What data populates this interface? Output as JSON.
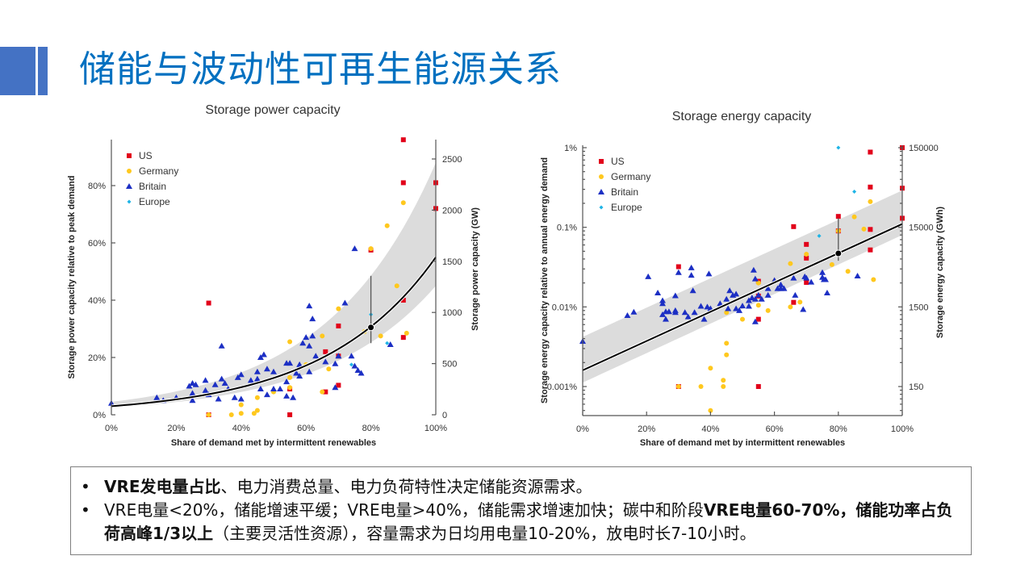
{
  "header": {
    "title": "储能与波动性可再生能源关系",
    "accent": "#4472C4",
    "title_color": "#0070C0"
  },
  "notes": {
    "bullet": "•",
    "items": [
      {
        "bold": "VRE发电量占比",
        "normal": "、电力消费总量、电力负荷特性决定储能资源需求。"
      },
      {
        "normal1": "VRE电量<20%，储能增速平缓；VRE电量>40%，储能需求增速加快；碳中和阶段",
        "bold": "VRE电量60-70%，储能功率占负荷高峰1/3以上",
        "normal2": "（主要灵活性资源），容量需求为日均用电量10-20%，放电时长7-10小时。"
      }
    ]
  },
  "colors": {
    "US": "#E2001A",
    "Germany": "#FFC81E",
    "Britain": "#1C2FC4",
    "Europe": "#1EB4E6",
    "band": "#DCDCDC",
    "fit": "#000000"
  },
  "chart_data": [
    {
      "type": "scatter",
      "title": "Storage power capacity",
      "xlabel": "Share of demand met by intermittent renewables",
      "ylabel": "Storage power capacity relative to peak demand",
      "y2label": "Storage power capacity (GW)",
      "xlim": [
        0,
        100
      ],
      "ylim": [
        0,
        96
      ],
      "yscale": "linear",
      "xticks": [
        "0%",
        "20%",
        "40%",
        "60%",
        "80%",
        "100%"
      ],
      "yticks": [
        "0%",
        "20%",
        "40%",
        "60%",
        "80%"
      ],
      "y2ticks": [
        "0",
        "500",
        "1000",
        "1500",
        "2000",
        "2500"
      ],
      "y2_per_percent": 28.4,
      "legend": [
        "US",
        "Germany",
        "Britain",
        "Europe"
      ],
      "legend_position": "top-left",
      "fit": {
        "form": "exponential",
        "y_at_0": 3,
        "y_at_100": 55,
        "band_upper": [
          4.5,
          88
        ],
        "band_lower": [
          2.5,
          45
        ],
        "marker": [
          80,
          30.5
        ],
        "errorbar": [
          25,
          48.5
        ]
      },
      "series": [
        {
          "name": "US",
          "points": [
            [
              30,
              39
            ],
            [
              90,
              96
            ],
            [
              90,
              81
            ],
            [
              100,
              81
            ],
            [
              100,
              72
            ],
            [
              80,
              57.5
            ],
            [
              90,
              40
            ],
            [
              70,
              31
            ],
            [
              90,
              27
            ],
            [
              66,
              22
            ],
            [
              70,
              20.5
            ],
            [
              70,
              10.3
            ],
            [
              66,
              8
            ],
            [
              55,
              9
            ],
            [
              55,
              0
            ],
            [
              30,
              0
            ]
          ]
        },
        {
          "name": "Germany",
          "points": [
            [
              90,
              74
            ],
            [
              85,
              66
            ],
            [
              80,
              58
            ],
            [
              88,
              45
            ],
            [
              70,
              37
            ],
            [
              91,
              28.5
            ],
            [
              83,
              27.5
            ],
            [
              65,
              27.5
            ],
            [
              55,
              25.5
            ],
            [
              60,
              17.5
            ],
            [
              67,
              16
            ],
            [
              55,
              13
            ],
            [
              55,
              9.5
            ],
            [
              50,
              8
            ],
            [
              65,
              8
            ],
            [
              45,
              6
            ],
            [
              40,
              3.5
            ],
            [
              40,
              0.5
            ],
            [
              44,
              0.5
            ],
            [
              45,
              1.5
            ],
            [
              37,
              0
            ],
            [
              30,
              0
            ],
            [
              78,
              29
            ]
          ]
        },
        {
          "name": "Britain",
          "points": [
            [
              75,
              58
            ],
            [
              61,
              38
            ],
            [
              72,
              39
            ],
            [
              62,
              33.5
            ],
            [
              34,
              24
            ],
            [
              47,
              21
            ],
            [
              46,
              20
            ],
            [
              59,
              25
            ],
            [
              61,
              24
            ],
            [
              60,
              27
            ],
            [
              62,
              27.5
            ],
            [
              63,
              20.5
            ],
            [
              66,
              18.5
            ],
            [
              70,
              20.5
            ],
            [
              69,
              17.8
            ],
            [
              74,
              20.5
            ],
            [
              75,
              17
            ],
            [
              76,
              15.5
            ],
            [
              77,
              14.5
            ],
            [
              61,
              15
            ],
            [
              58,
              17.5
            ],
            [
              58,
              13.5
            ],
            [
              57,
              14.5
            ],
            [
              54,
              18
            ],
            [
              55,
              18
            ],
            [
              50,
              15
            ],
            [
              48,
              16
            ],
            [
              45,
              15
            ],
            [
              45,
              12.5
            ],
            [
              43,
              12
            ],
            [
              40,
              14
            ],
            [
              39,
              13
            ],
            [
              35,
              11
            ],
            [
              34,
              12.5
            ],
            [
              32,
              10.5
            ],
            [
              29,
              12
            ],
            [
              26,
              10.5
            ],
            [
              25,
              11
            ],
            [
              24,
              10
            ],
            [
              25,
              7.5
            ],
            [
              29,
              8.5
            ],
            [
              30,
              7
            ],
            [
              33,
              5.5
            ],
            [
              38,
              6
            ],
            [
              40,
              5.5
            ],
            [
              46,
              9
            ],
            [
              48,
              7
            ],
            [
              50,
              9
            ],
            [
              52,
              9
            ],
            [
              54,
              6.5
            ],
            [
              54,
              11.5
            ],
            [
              56,
              6
            ],
            [
              69,
              9.5
            ],
            [
              86,
              24.5
            ],
            [
              14,
              6
            ],
            [
              16,
              5
            ],
            [
              20,
              6
            ],
            [
              25,
              5
            ],
            [
              0,
              4
            ],
            [
              36,
              9
            ]
          ]
        },
        {
          "name": "Europe",
          "points": [
            [
              80,
              35
            ],
            [
              85,
              25
            ],
            [
              74,
              17.5
            ]
          ]
        }
      ]
    },
    {
      "type": "scatter",
      "title": "Storage energy capacity",
      "xlabel": "Share of demand met by intermittent renewables",
      "ylabel": "Storage energy capacity relative to annual energy demand",
      "y2label": "Storage energy capacity (GWh)",
      "xlim": [
        0,
        100
      ],
      "ylim": [
        0.00043,
        1.03
      ],
      "yscale": "log",
      "xticks": [
        "0%",
        "20%",
        "40%",
        "60%",
        "80%",
        "100%"
      ],
      "yticks": [
        "0.001%",
        "0.01%",
        "0.1%",
        "1%"
      ],
      "y2ticks": [
        "150",
        "1500",
        "15000",
        "150000"
      ],
      "legend": [
        "US",
        "Germany",
        "Britain",
        "Europe"
      ],
      "legend_position": "top-left",
      "fit": {
        "form": "log-linear",
        "y_at_0": 0.0016,
        "y_at_100": 0.11,
        "band_upper": [
          0.0042,
          0.29
        ],
        "band_lower": [
          0.00112,
          0.08
        ],
        "marker": [
          80,
          0.047
        ],
        "errorbar": [
          0.038,
          0.13
        ]
      },
      "series": [
        {
          "name": "US",
          "points": [
            [
              30,
              0.032
            ],
            [
              55,
              0.0137
            ],
            [
              55,
              0.021
            ],
            [
              55,
              0.007
            ],
            [
              55,
              0.001
            ],
            [
              30,
              0.001
            ],
            [
              66,
              0.102
            ],
            [
              66,
              0.0114
            ],
            [
              70,
              0.061
            ],
            [
              70,
              0.041
            ],
            [
              70,
              0.0203
            ],
            [
              80,
              0.137
            ],
            [
              80,
              0.09
            ],
            [
              90,
              0.88
            ],
            [
              90,
              0.32
            ],
            [
              90,
              0.094
            ],
            [
              90,
              0.052
            ],
            [
              100,
              1.0
            ],
            [
              100,
              0.31
            ],
            [
              100,
              0.13
            ]
          ]
        },
        {
          "name": "Germany",
          "points": [
            [
              90,
              0.21
            ],
            [
              85,
              0.135
            ],
            [
              88,
              0.095
            ],
            [
              80,
              0.09
            ],
            [
              78,
              0.034
            ],
            [
              83,
              0.028
            ],
            [
              91,
              0.022
            ],
            [
              70,
              0.046
            ],
            [
              65,
              0.035
            ],
            [
              60,
              0.021
            ],
            [
              55,
              0.02
            ],
            [
              55,
              0.0105
            ],
            [
              58,
              0.009
            ],
            [
              65,
              0.01
            ],
            [
              68,
              0.0115
            ],
            [
              50,
              0.007
            ],
            [
              45,
              0.0085
            ],
            [
              45,
              0.0035
            ],
            [
              45,
              0.0025
            ],
            [
              40,
              0.0017
            ],
            [
              44,
              0.0012
            ],
            [
              44,
              0.001
            ],
            [
              37,
              0.001
            ],
            [
              30,
              0.001
            ],
            [
              40,
              0.0005
            ]
          ]
        },
        {
          "name": "Britain",
          "points": [
            [
              0,
              0.0037
            ],
            [
              14,
              0.0078
            ],
            [
              16,
              0.0086
            ],
            [
              20.5,
              0.024
            ],
            [
              23.5,
              0.015
            ],
            [
              25,
              0.012
            ],
            [
              25,
              0.011
            ],
            [
              25,
              0.008
            ],
            [
              26,
              0.0087
            ],
            [
              27,
              0.0087
            ],
            [
              26,
              0.007
            ],
            [
              29,
              0.0138
            ],
            [
              29,
              0.009
            ],
            [
              29,
              0.0085
            ],
            [
              30,
              0.027
            ],
            [
              32,
              0.0085
            ],
            [
              33,
              0.0075
            ],
            [
              34,
              0.031
            ],
            [
              34,
              0.025
            ],
            [
              34.5,
              0.016
            ],
            [
              35,
              0.0085
            ],
            [
              37,
              0.0102
            ],
            [
              38,
              0.007
            ],
            [
              39,
              0.01
            ],
            [
              39.5,
              0.026
            ],
            [
              40,
              0.0095
            ],
            [
              43,
              0.011
            ],
            [
              45,
              0.0125
            ],
            [
              45.5,
              0.0095
            ],
            [
              46,
              0.016
            ],
            [
              47,
              0.014
            ],
            [
              48,
              0.0145
            ],
            [
              48,
              0.0095
            ],
            [
              49,
              0.009
            ],
            [
              50,
              0.0103
            ],
            [
              52,
              0.012
            ],
            [
              52,
              0.0102
            ],
            [
              53,
              0.013
            ],
            [
              53.5,
              0.029
            ],
            [
              54,
              0.0225
            ],
            [
              54,
              0.0065
            ],
            [
              54,
              0.0125
            ],
            [
              55,
              0.014
            ],
            [
              56,
              0.0125
            ],
            [
              58,
              0.017
            ],
            [
              58,
              0.014
            ],
            [
              60,
              0.0215
            ],
            [
              61,
              0.017
            ],
            [
              62,
              0.019
            ],
            [
              62,
              0.017
            ],
            [
              63,
              0.017
            ],
            [
              66,
              0.023
            ],
            [
              66.5,
              0.014
            ],
            [
              69,
              0.0093
            ],
            [
              69.5,
              0.024
            ],
            [
              70,
              0.023
            ],
            [
              71.5,
              0.0205
            ],
            [
              75,
              0.027
            ],
            [
              75,
              0.0235
            ],
            [
              75.5,
              0.022
            ],
            [
              76,
              0.022
            ],
            [
              76.5,
              0.015
            ],
            [
              86,
              0.0245
            ]
          ]
        },
        {
          "name": "Europe",
          "points": [
            [
              80,
              1.0
            ],
            [
              85,
              0.28
            ],
            [
              74,
              0.078
            ]
          ]
        }
      ]
    }
  ]
}
